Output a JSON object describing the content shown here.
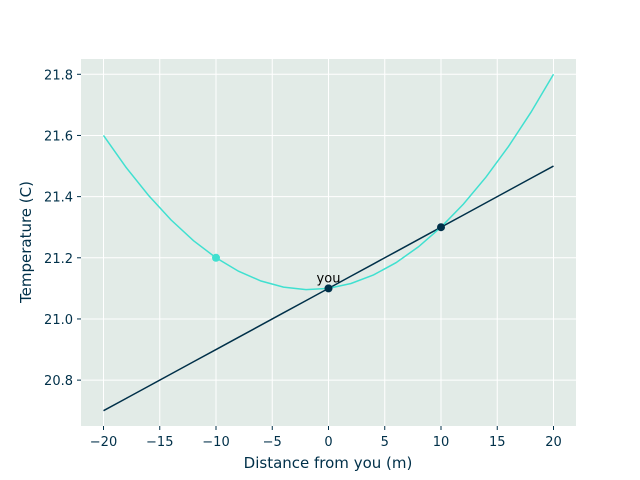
{
  "chart_data": {
    "type": "line",
    "xlabel": "Distance from you (m)",
    "ylabel": "Temperature (C)",
    "x": [
      -20,
      -18,
      -16,
      -14,
      -12,
      -10,
      -8,
      -6,
      -4,
      -2,
      0,
      2,
      4,
      6,
      8,
      10,
      12,
      14,
      16,
      18,
      20
    ],
    "series": [
      {
        "color": "#003049",
        "values": [
          20.7,
          20.74,
          20.78,
          20.82,
          20.86,
          20.9,
          20.94,
          20.98,
          21.02,
          21.06,
          21.1,
          21.14,
          21.18,
          21.22,
          21.26,
          21.3,
          21.34,
          21.38,
          21.42,
          21.46,
          21.5
        ]
      },
      {
        "color": "#40e0d0",
        "values": [
          21.6,
          21.496,
          21.404,
          21.324,
          21.256,
          21.2,
          21.156,
          21.124,
          21.104,
          21.096,
          21.1,
          21.116,
          21.144,
          21.184,
          21.236,
          21.3,
          21.376,
          21.464,
          21.564,
          21.676,
          21.8
        ]
      }
    ],
    "points": [
      {
        "x": -10,
        "y": 21.2,
        "color": "#40e0d0"
      },
      {
        "x": 0,
        "y": 21.1,
        "color": "#003049"
      },
      {
        "x": 10,
        "y": 21.3,
        "color": "#003049"
      }
    ],
    "annotation": {
      "text": "you",
      "x": 0,
      "y": 21.1
    },
    "xlim": [
      -22,
      22
    ],
    "ylim": [
      20.65,
      21.85
    ],
    "xticks": [
      {
        "value": -20,
        "label": "−20"
      },
      {
        "value": -15,
        "label": "−15"
      },
      {
        "value": -10,
        "label": "−10"
      },
      {
        "value": -5,
        "label": "−5"
      },
      0,
      5,
      10,
      15,
      20
    ],
    "yticks": [
      20.8,
      {
        "value": 21.0,
        "label": "21.0"
      },
      21.2,
      21.4,
      21.6,
      21.8
    ],
    "grid": true,
    "background": "#e2ebe7",
    "text_color": "#003049"
  }
}
